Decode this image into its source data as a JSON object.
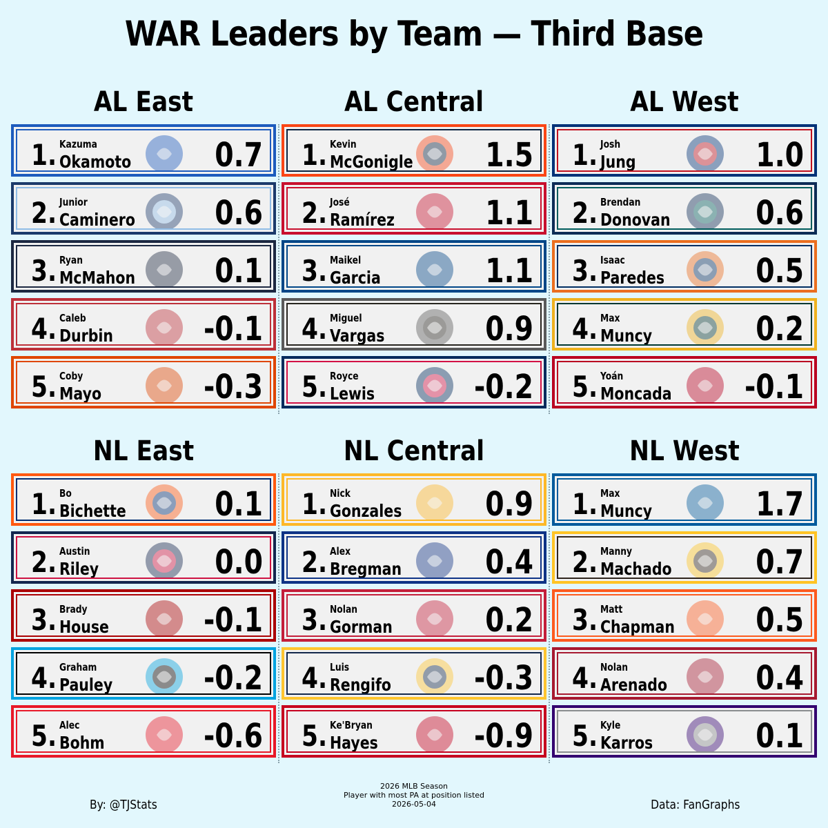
{
  "title": "WAR Leaders by Team — Third Base",
  "divisions": [
    {
      "name": "AL East",
      "players": [
        {
          "rank": "1.",
          "first": "Kazuma",
          "last": "Okamoto",
          "war": "0.7",
          "team_logo": "toronto-blue-jays-logo",
          "border": "#1d5bbd",
          "accent": "#1d5bbd"
        },
        {
          "rank": "2.",
          "first": "Junior",
          "last": "Caminero",
          "war": "0.6",
          "team_logo": "tampa-bay-rays-logo",
          "border": "#1b3a6b",
          "accent": "#8fbce6"
        },
        {
          "rank": "3.",
          "first": "Ryan",
          "last": "McMahon",
          "war": "0.1",
          "team_logo": "new-york-yankees-logo",
          "border": "#1c2841",
          "accent": "#1c2841"
        },
        {
          "rank": "4.",
          "first": "Caleb",
          "last": "Durbin",
          "war": "-0.1",
          "team_logo": "boston-red-sox-logo",
          "border": "#bd3039",
          "accent": "#bd3039"
        },
        {
          "rank": "5.",
          "first": "Coby",
          "last": "Mayo",
          "war": "-0.3",
          "team_logo": "baltimore-orioles-logo",
          "border": "#df4601",
          "accent": "#df4601"
        }
      ]
    },
    {
      "name": "AL Central",
      "players": [
        {
          "rank": "1.",
          "first": "Kevin",
          "last": "McGonigle",
          "war": "1.5",
          "team_logo": "detroit-tigers-logo",
          "border": "#fa4616",
          "accent": "#0c2340"
        },
        {
          "rank": "2.",
          "first": "José",
          "last": "Ramírez",
          "war": "1.1",
          "team_logo": "cleveland-guardians-logo",
          "border": "#c8102e",
          "accent": "#c8102e"
        },
        {
          "rank": "3.",
          "first": "Maikel",
          "last": "Garcia",
          "war": "1.1",
          "team_logo": "kansas-city-royals-logo",
          "border": "#004687",
          "accent": "#004687"
        },
        {
          "rank": "4.",
          "first": "Miguel",
          "last": "Vargas",
          "war": "0.9",
          "team_logo": "chicago-white-sox-logo",
          "border": "#5a5a5a",
          "accent": "#27251f"
        },
        {
          "rank": "5.",
          "first": "Royce",
          "last": "Lewis",
          "war": "-0.2",
          "team_logo": "minnesota-twins-logo",
          "border": "#002b5c",
          "accent": "#d31145"
        }
      ]
    },
    {
      "name": "AL West",
      "players": [
        {
          "rank": "1.",
          "first": "Josh",
          "last": "Jung",
          "war": "1.0",
          "team_logo": "texas-rangers-logo",
          "border": "#003278",
          "accent": "#c0111f"
        },
        {
          "rank": "2.",
          "first": "Brendan",
          "last": "Donovan",
          "war": "0.6",
          "team_logo": "seattle-mariners-logo",
          "border": "#0c2c56",
          "accent": "#005c5c"
        },
        {
          "rank": "3.",
          "first": "Isaac",
          "last": "Paredes",
          "war": "0.5",
          "team_logo": "houston-astros-logo",
          "border": "#eb6e1f",
          "accent": "#002d62"
        },
        {
          "rank": "4.",
          "first": "Max",
          "last": "Muncy",
          "war": "0.2",
          "team_logo": "athletics-logo",
          "border": "#efb21e",
          "accent": "#003831"
        },
        {
          "rank": "5.",
          "first": "Yoán",
          "last": "Moncada",
          "war": "-0.1",
          "team_logo": "los-angeles-angels-logo",
          "border": "#ba0021",
          "accent": "#ba0021"
        }
      ]
    },
    {
      "name": "NL East",
      "players": [
        {
          "rank": "1.",
          "first": "Bo",
          "last": "Bichette",
          "war": "0.1",
          "team_logo": "new-york-mets-logo",
          "border": "#ff5910",
          "accent": "#002d72"
        },
        {
          "rank": "2.",
          "first": "Austin",
          "last": "Riley",
          "war": "0.0",
          "team_logo": "atlanta-braves-logo",
          "border": "#13274f",
          "accent": "#ce1141"
        },
        {
          "rank": "3.",
          "first": "Brady",
          "last": "House",
          "war": "-0.1",
          "team_logo": "washington-nationals-logo",
          "border": "#ab0003",
          "accent": "#ab0003"
        },
        {
          "rank": "4.",
          "first": "Graham",
          "last": "Pauley",
          "war": "-0.2",
          "team_logo": "miami-marlins-logo",
          "border": "#00a3e0",
          "accent": "#000000"
        },
        {
          "rank": "5.",
          "first": "Alec",
          "last": "Bohm",
          "war": "-0.6",
          "team_logo": "philadelphia-phillies-logo",
          "border": "#e81828",
          "accent": "#e81828"
        }
      ]
    },
    {
      "name": "NL Central",
      "players": [
        {
          "rank": "1.",
          "first": "Nick",
          "last": "Gonzales",
          "war": "0.9",
          "team_logo": "pittsburgh-pirates-logo",
          "border": "#fdb827",
          "accent": "#fdb827"
        },
        {
          "rank": "2.",
          "first": "Alex",
          "last": "Bregman",
          "war": "0.4",
          "team_logo": "chicago-cubs-logo",
          "border": "#0e3386",
          "accent": "#0e3386"
        },
        {
          "rank": "3.",
          "first": "Nolan",
          "last": "Gorman",
          "war": "0.2",
          "team_logo": "st-louis-cardinals-logo",
          "border": "#c41e3a",
          "accent": "#c41e3a"
        },
        {
          "rank": "4.",
          "first": "Luis",
          "last": "Rengifo",
          "war": "-0.3",
          "team_logo": "milwaukee-brewers-logo",
          "border": "#ffc52f",
          "accent": "#12284b"
        },
        {
          "rank": "5.",
          "first": "Ke'Bryan",
          "last": "Hayes",
          "war": "-0.9",
          "team_logo": "cincinnati-reds-logo",
          "border": "#c6011f",
          "accent": "#c6011f"
        }
      ]
    },
    {
      "name": "NL West",
      "players": [
        {
          "rank": "1.",
          "first": "Max",
          "last": "Muncy",
          "war": "1.7",
          "team_logo": "los-angeles-dodgers-logo",
          "border": "#005a9c",
          "accent": "#005a9c"
        },
        {
          "rank": "2.",
          "first": "Manny",
          "last": "Machado",
          "war": "0.7",
          "team_logo": "san-diego-padres-logo",
          "border": "#ffc425",
          "accent": "#2f241d"
        },
        {
          "rank": "3.",
          "first": "Matt",
          "last": "Chapman",
          "war": "0.5",
          "team_logo": "san-francisco-giants-logo",
          "border": "#fd5a1e",
          "accent": "#fd5a1e"
        },
        {
          "rank": "4.",
          "first": "Nolan",
          "last": "Arenado",
          "war": "0.4",
          "team_logo": "arizona-diamondbacks-logo",
          "border": "#a71930",
          "accent": "#a71930"
        },
        {
          "rank": "5.",
          "first": "Kyle",
          "last": "Karros",
          "war": "0.1",
          "team_logo": "colorado-rockies-logo",
          "border": "#33006f",
          "accent": "#8a8d8f"
        }
      ]
    }
  ],
  "footer": {
    "left": "By: @TJStats",
    "center": [
      "2026 MLB Season",
      "Player with most PA at position listed",
      "2026-05-04"
    ],
    "right": "Data: FanGraphs"
  }
}
